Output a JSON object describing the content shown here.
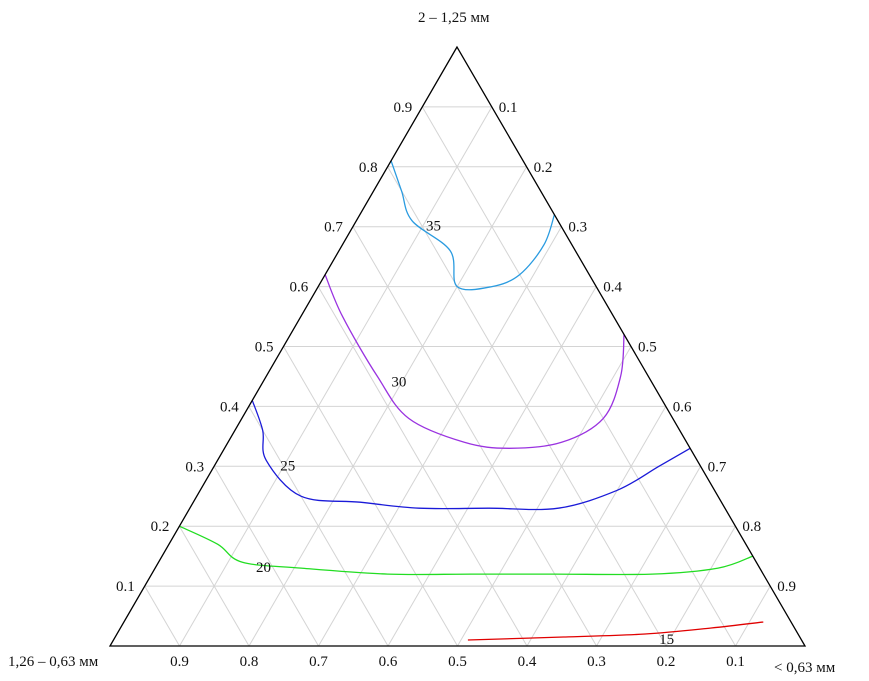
{
  "chart_data": {
    "type": "ternary-contour",
    "vertices": {
      "top": "2 – 1,25 мм",
      "left": "1,26 – 0,63 мм",
      "right": "< 0,63 мм"
    },
    "tick_labels": [
      "0.1",
      "0.2",
      "0.3",
      "0.4",
      "0.5",
      "0.6",
      "0.7",
      "0.8",
      "0.9"
    ],
    "grid": true,
    "contours": [
      {
        "level": "15",
        "color": "#e00000",
        "points": [
          [
            0.04,
            0.04,
            0.92
          ],
          [
            0.03,
            0.12,
            0.85
          ],
          [
            0.02,
            0.22,
            0.76
          ],
          [
            0.015,
            0.34,
            0.645
          ],
          [
            0.01,
            0.48,
            0.51
          ]
        ]
      },
      {
        "level": "20",
        "color": "#22dd22",
        "points": [
          [
            0.2,
            0.8,
            0.0
          ],
          [
            0.17,
            0.76,
            0.07
          ],
          [
            0.14,
            0.74,
            0.12
          ],
          [
            0.13,
            0.66,
            0.21
          ],
          [
            0.12,
            0.54,
            0.34
          ],
          [
            0.12,
            0.42,
            0.46
          ],
          [
            0.12,
            0.3,
            0.58
          ],
          [
            0.12,
            0.16,
            0.72
          ],
          [
            0.13,
            0.06,
            0.81
          ],
          [
            0.15,
            0.0,
            0.85
          ]
        ]
      },
      {
        "level": "25",
        "color": "#1a1ad8",
        "points": [
          [
            0.41,
            0.59,
            0.0
          ],
          [
            0.36,
            0.6,
            0.04
          ],
          [
            0.31,
            0.62,
            0.07
          ],
          [
            0.25,
            0.6,
            0.15
          ],
          [
            0.24,
            0.52,
            0.24
          ],
          [
            0.23,
            0.44,
            0.33
          ],
          [
            0.23,
            0.34,
            0.43
          ],
          [
            0.23,
            0.24,
            0.53
          ],
          [
            0.26,
            0.14,
            0.6
          ],
          [
            0.3,
            0.06,
            0.64
          ],
          [
            0.33,
            0.0,
            0.67
          ]
        ]
      },
      {
        "level": "30",
        "color": "#9a33e0",
        "points": [
          [
            0.62,
            0.38,
            0.0
          ],
          [
            0.55,
            0.39,
            0.06
          ],
          [
            0.45,
            0.39,
            0.16
          ],
          [
            0.38,
            0.38,
            0.24
          ],
          [
            0.34,
            0.32,
            0.34
          ],
          [
            0.33,
            0.26,
            0.41
          ],
          [
            0.34,
            0.18,
            0.48
          ],
          [
            0.38,
            0.1,
            0.52
          ],
          [
            0.45,
            0.04,
            0.51
          ],
          [
            0.52,
            0.0,
            0.48
          ]
        ]
      },
      {
        "level": "35",
        "color": "#2a9be0",
        "points": [
          [
            0.81,
            0.19,
            0.0
          ],
          [
            0.76,
            0.2,
            0.04
          ],
          [
            0.71,
            0.21,
            0.08
          ],
          [
            0.66,
            0.18,
            0.16
          ],
          [
            0.6,
            0.2,
            0.2
          ],
          [
            0.6,
            0.15,
            0.25
          ],
          [
            0.62,
            0.1,
            0.28
          ],
          [
            0.67,
            0.04,
            0.29
          ],
          [
            0.72,
            0.0,
            0.28
          ]
        ]
      }
    ]
  }
}
